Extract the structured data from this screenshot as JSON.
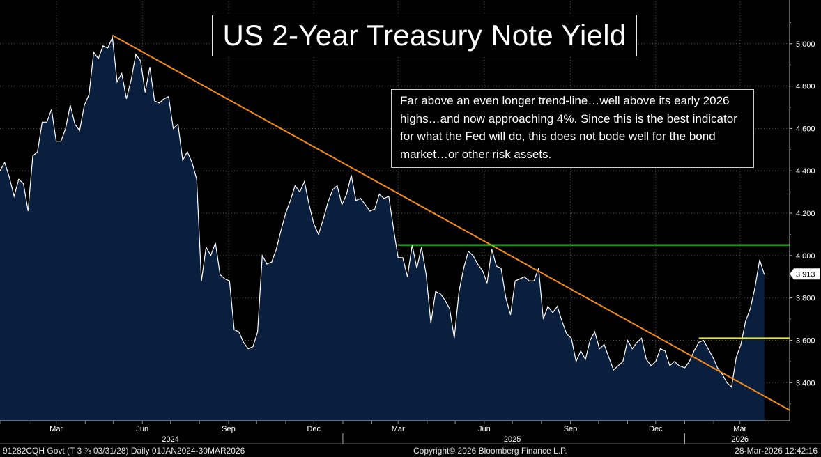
{
  "chart_data": {
    "type": "area",
    "title": "US 2-Year Treasury Note Yield",
    "annotation": "Far above an even longer trend-line…well above its early 2026 highs…and now approaching 4%.  Since this is the best indicator for what the Fed will do, this does not bode well for the bond market…or other risk assets.",
    "last_value_label": "3.913",
    "y_ticks": [
      "3.400",
      "3.600",
      "3.800",
      "4.000",
      "4.200",
      "4.400",
      "4.600",
      "4.800",
      "5.000"
    ],
    "ylim": [
      3.22,
      5.2
    ],
    "x_range": [
      "2024-01-01",
      "2026-04-23"
    ],
    "x_month_labels": [
      {
        "label": "Mar",
        "date": "2024-03-01"
      },
      {
        "label": "Jun",
        "date": "2024-06-01"
      },
      {
        "label": "Sep",
        "date": "2024-09-01"
      },
      {
        "label": "Dec",
        "date": "2024-12-01"
      },
      {
        "label": "Mar",
        "date": "2025-03-01"
      },
      {
        "label": "Jun",
        "date": "2025-06-01"
      },
      {
        "label": "Sep",
        "date": "2025-09-01"
      },
      {
        "label": "Dec",
        "date": "2025-12-01"
      },
      {
        "label": "Mar",
        "date": "2026-03-01"
      }
    ],
    "x_year_labels": [
      {
        "label": "2024",
        "date": "2024-07-01"
      },
      {
        "label": "2025",
        "date": "2025-07-01"
      },
      {
        "label": "2026",
        "date": "2026-03-01"
      }
    ],
    "series": [
      {
        "points": [
          [
            "2024-01-01",
            4.4
          ],
          [
            "2024-01-06",
            4.44
          ],
          [
            "2024-01-11",
            4.37
          ],
          [
            "2024-01-16",
            4.28
          ],
          [
            "2024-01-21",
            4.36
          ],
          [
            "2024-01-26",
            4.34
          ],
          [
            "2024-01-31",
            4.21
          ],
          [
            "2024-02-05",
            4.47
          ],
          [
            "2024-02-10",
            4.49
          ],
          [
            "2024-02-15",
            4.63
          ],
          [
            "2024-02-20",
            4.63
          ],
          [
            "2024-02-25",
            4.69
          ],
          [
            "2024-03-01",
            4.54
          ],
          [
            "2024-03-06",
            4.54
          ],
          [
            "2024-03-11",
            4.6
          ],
          [
            "2024-03-16",
            4.71
          ],
          [
            "2024-03-21",
            4.62
          ],
          [
            "2024-03-26",
            4.59
          ],
          [
            "2024-03-31",
            4.71
          ],
          [
            "2024-04-05",
            4.76
          ],
          [
            "2024-04-10",
            4.96
          ],
          [
            "2024-04-15",
            4.93
          ],
          [
            "2024-04-20",
            4.99
          ],
          [
            "2024-04-25",
            4.98
          ],
          [
            "2024-04-30",
            5.03
          ],
          [
            "2024-05-05",
            4.82
          ],
          [
            "2024-05-10",
            4.86
          ],
          [
            "2024-05-15",
            4.74
          ],
          [
            "2024-05-20",
            4.83
          ],
          [
            "2024-05-25",
            4.95
          ],
          [
            "2024-05-30",
            4.92
          ],
          [
            "2024-06-04",
            4.77
          ],
          [
            "2024-06-09",
            4.89
          ],
          [
            "2024-06-14",
            4.73
          ],
          [
            "2024-06-19",
            4.72
          ],
          [
            "2024-06-24",
            4.74
          ],
          [
            "2024-06-29",
            4.75
          ],
          [
            "2024-07-04",
            4.6
          ],
          [
            "2024-07-09",
            4.62
          ],
          [
            "2024-07-14",
            4.45
          ],
          [
            "2024-07-19",
            4.49
          ],
          [
            "2024-07-24",
            4.44
          ],
          [
            "2024-07-29",
            4.36
          ],
          [
            "2024-08-03",
            3.88
          ],
          [
            "2024-08-08",
            4.04
          ],
          [
            "2024-08-13",
            4.0
          ],
          [
            "2024-08-18",
            4.06
          ],
          [
            "2024-08-23",
            3.91
          ],
          [
            "2024-08-28",
            3.89
          ],
          [
            "2024-09-02",
            3.88
          ],
          [
            "2024-09-07",
            3.65
          ],
          [
            "2024-09-12",
            3.64
          ],
          [
            "2024-09-17",
            3.59
          ],
          [
            "2024-09-22",
            3.56
          ],
          [
            "2024-09-27",
            3.57
          ],
          [
            "2024-10-02",
            3.64
          ],
          [
            "2024-10-07",
            4.0
          ],
          [
            "2024-10-12",
            3.96
          ],
          [
            "2024-10-17",
            3.97
          ],
          [
            "2024-10-22",
            4.03
          ],
          [
            "2024-10-27",
            4.12
          ],
          [
            "2024-11-01",
            4.2
          ],
          [
            "2024-11-06",
            4.26
          ],
          [
            "2024-11-11",
            4.33
          ],
          [
            "2024-11-16",
            4.3
          ],
          [
            "2024-11-21",
            4.35
          ],
          [
            "2024-11-26",
            4.24
          ],
          [
            "2024-12-01",
            4.15
          ],
          [
            "2024-12-06",
            4.1
          ],
          [
            "2024-12-11",
            4.17
          ],
          [
            "2024-12-16",
            4.25
          ],
          [
            "2024-12-21",
            4.31
          ],
          [
            "2024-12-26",
            4.33
          ],
          [
            "2024-12-31",
            4.24
          ],
          [
            "2025-01-05",
            4.29
          ],
          [
            "2025-01-10",
            4.38
          ],
          [
            "2025-01-15",
            4.26
          ],
          [
            "2025-01-20",
            4.27
          ],
          [
            "2025-01-25",
            4.24
          ],
          [
            "2025-01-30",
            4.21
          ],
          [
            "2025-02-04",
            4.22
          ],
          [
            "2025-02-09",
            4.29
          ],
          [
            "2025-02-14",
            4.27
          ],
          [
            "2025-02-19",
            4.28
          ],
          [
            "2025-02-24",
            4.13
          ],
          [
            "2025-03-01",
            3.99
          ],
          [
            "2025-03-06",
            3.99
          ],
          [
            "2025-03-11",
            3.9
          ],
          [
            "2025-03-16",
            4.05
          ],
          [
            "2025-03-21",
            3.94
          ],
          [
            "2025-03-26",
            4.04
          ],
          [
            "2025-03-31",
            3.91
          ],
          [
            "2025-04-05",
            3.68
          ],
          [
            "2025-04-10",
            3.83
          ],
          [
            "2025-04-15",
            3.82
          ],
          [
            "2025-04-20",
            3.79
          ],
          [
            "2025-04-25",
            3.75
          ],
          [
            "2025-04-30",
            3.61
          ],
          [
            "2025-05-05",
            3.83
          ],
          [
            "2025-05-10",
            3.94
          ],
          [
            "2025-05-15",
            4.02
          ],
          [
            "2025-05-20",
            4.0
          ],
          [
            "2025-05-25",
            3.96
          ],
          [
            "2025-05-30",
            3.93
          ],
          [
            "2025-06-04",
            3.87
          ],
          [
            "2025-06-09",
            4.03
          ],
          [
            "2025-06-14",
            3.95
          ],
          [
            "2025-06-19",
            3.94
          ],
          [
            "2025-06-24",
            3.8
          ],
          [
            "2025-06-29",
            3.72
          ],
          [
            "2025-07-04",
            3.88
          ],
          [
            "2025-07-09",
            3.89
          ],
          [
            "2025-07-14",
            3.9
          ],
          [
            "2025-07-19",
            3.88
          ],
          [
            "2025-07-24",
            3.88
          ],
          [
            "2025-07-29",
            3.94
          ],
          [
            "2025-08-03",
            3.7
          ],
          [
            "2025-08-08",
            3.76
          ],
          [
            "2025-08-13",
            3.73
          ],
          [
            "2025-08-18",
            3.76
          ],
          [
            "2025-08-23",
            3.69
          ],
          [
            "2025-08-28",
            3.63
          ],
          [
            "2025-09-02",
            3.61
          ],
          [
            "2025-09-07",
            3.5
          ],
          [
            "2025-09-12",
            3.55
          ],
          [
            "2025-09-17",
            3.51
          ],
          [
            "2025-09-22",
            3.6
          ],
          [
            "2025-09-27",
            3.64
          ],
          [
            "2025-10-02",
            3.56
          ],
          [
            "2025-10-07",
            3.58
          ],
          [
            "2025-10-12",
            3.52
          ],
          [
            "2025-10-17",
            3.46
          ],
          [
            "2025-10-22",
            3.48
          ],
          [
            "2025-10-27",
            3.5
          ],
          [
            "2025-11-01",
            3.6
          ],
          [
            "2025-11-06",
            3.56
          ],
          [
            "2025-11-11",
            3.59
          ],
          [
            "2025-11-16",
            3.61
          ],
          [
            "2025-11-21",
            3.51
          ],
          [
            "2025-11-26",
            3.48
          ],
          [
            "2025-12-01",
            3.5
          ],
          [
            "2025-12-06",
            3.56
          ],
          [
            "2025-12-11",
            3.55
          ],
          [
            "2025-12-16",
            3.48
          ],
          [
            "2025-12-21",
            3.5
          ],
          [
            "2025-12-26",
            3.48
          ],
          [
            "2026-01-01",
            3.47
          ],
          [
            "2026-01-06",
            3.5
          ],
          [
            "2026-01-11",
            3.55
          ],
          [
            "2026-01-16",
            3.59
          ],
          [
            "2026-01-21",
            3.6
          ],
          [
            "2026-01-26",
            3.56
          ],
          [
            "2026-01-31",
            3.52
          ],
          [
            "2026-02-05",
            3.47
          ],
          [
            "2026-02-10",
            3.44
          ],
          [
            "2026-02-15",
            3.4
          ],
          [
            "2026-02-20",
            3.38
          ],
          [
            "2026-02-25",
            3.52
          ],
          [
            "2026-03-02",
            3.58
          ],
          [
            "2026-03-07",
            3.69
          ],
          [
            "2026-03-12",
            3.75
          ],
          [
            "2026-03-17",
            3.85
          ],
          [
            "2026-03-22",
            3.98
          ],
          [
            "2026-03-27",
            3.91
          ]
        ]
      }
    ],
    "trend_lines": [
      {
        "color": "#f28a1c",
        "from": [
          "2024-04-30",
          5.04
        ],
        "to": [
          "2026-04-23",
          3.27
        ]
      },
      {
        "color": "#33e033",
        "from": [
          "2025-03-01",
          4.05
        ],
        "to": [
          "2026-04-23",
          4.05
        ]
      },
      {
        "color": "#e8e81a",
        "from": [
          "2026-01-16",
          3.61
        ],
        "to": [
          "2026-04-23",
          3.61
        ]
      }
    ],
    "colors": {
      "fill": "#0a1f3d",
      "line": "#ffffff",
      "background": "#000000"
    }
  },
  "footer": {
    "security": "91282CQH Govt (T 3 ⅞ 03/31/28) Daily 01JAN2024-30MAR2026",
    "copyright": "Copyright© 2026 Bloomberg Finance L.P.",
    "timestamp": "28-Mar-2026 12:42:16"
  }
}
